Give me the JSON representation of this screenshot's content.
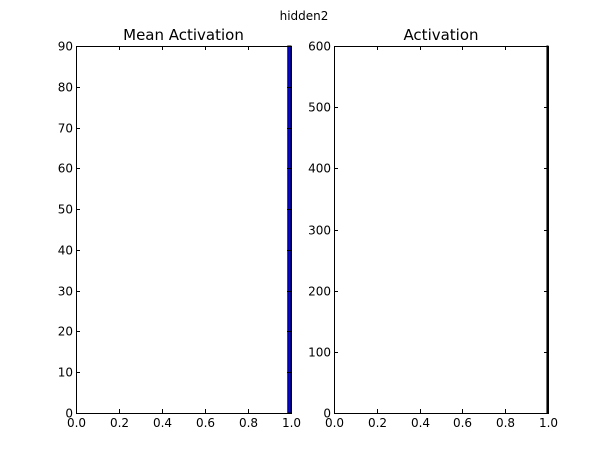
{
  "figure_title": "hidden2",
  "chart_data": [
    {
      "type": "bar",
      "title": "Mean Activation",
      "xlabel": "",
      "ylabel": "",
      "xlim": [
        0.0,
        1.0
      ],
      "ylim": [
        0,
        90
      ],
      "xticks": [
        "0.0",
        "0.2",
        "0.4",
        "0.6",
        "0.8",
        "1.0"
      ],
      "yticks": [
        "0",
        "10",
        "20",
        "30",
        "40",
        "50",
        "60",
        "70",
        "80",
        "90"
      ],
      "grid": false,
      "bins": [
        {
          "x0": 0.985,
          "x1": 1.0,
          "value": 90
        }
      ]
    },
    {
      "type": "bar",
      "title": "Activation",
      "xlabel": "",
      "ylabel": "",
      "xlim": [
        0.0,
        1.0
      ],
      "ylim": [
        0,
        600
      ],
      "xticks": [
        "0.0",
        "0.2",
        "0.4",
        "0.6",
        "0.8",
        "1.0"
      ],
      "yticks": [
        "0",
        "100",
        "200",
        "300",
        "400",
        "500",
        "600"
      ],
      "grid": false,
      "bins": [
        {
          "x0": 0.995,
          "x1": 1.0,
          "value": 600
        }
      ]
    }
  ],
  "colors": {
    "bar": "#0000ff",
    "frame": "#000000",
    "background": "#ffffff"
  }
}
